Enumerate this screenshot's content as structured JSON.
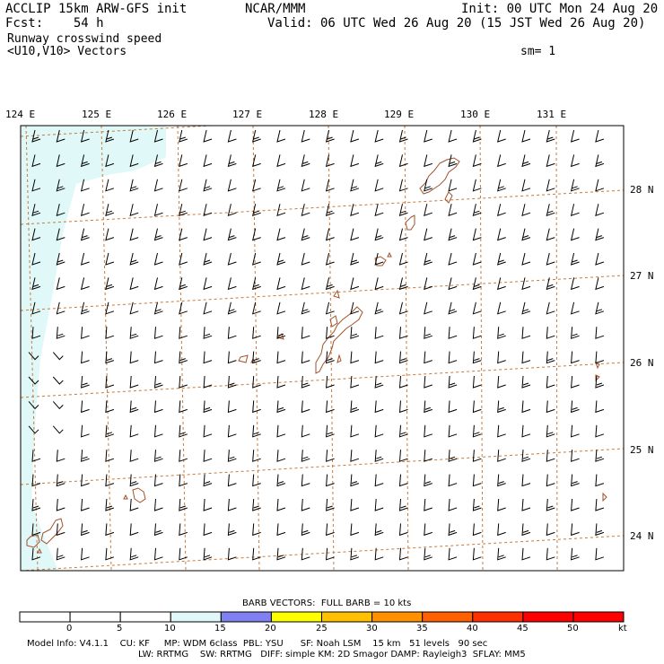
{
  "header": {
    "left_line1": "ACCLIP 15km ARW-GFS init",
    "center_line1": "NCAR/MMM",
    "right_line1": "Init: 00 UTC Mon 24 Aug 20",
    "left_line2": "Fcst:    54 h",
    "right_line2": "Valid: 06 UTC Wed 26 Aug 20 (15 JST Wed 26 Aug 20)",
    "field_name": "Runway crosswind speed",
    "field_vectors": "<U10,V10> Vectors",
    "smoothing": "sm= 1"
  },
  "map": {
    "lon_labels": [
      "124 E",
      "125 E",
      "126 E",
      "127 E",
      "128 E",
      "129 E",
      "130 E",
      "131 E"
    ],
    "lat_labels": [
      "28 N",
      "27 N",
      "26 N",
      "25 N",
      "24 N"
    ],
    "land_color": "#a0522d",
    "grid_color": "#c87a3c",
    "shade_color": "#e0f8f8"
  },
  "colorbar": {
    "title": "BARB VECTORS:  FULL BARB = 10 kts",
    "ticks": [
      "0",
      "5",
      "10",
      "15",
      "20",
      "25",
      "30",
      "35",
      "40",
      "45",
      "50"
    ],
    "unit": "kt",
    "colors": [
      "#ffffff",
      "#ffffff",
      "#ffffff",
      "#e0f8f8",
      "#8080f0",
      "#ffff00",
      "#ffc000",
      "#ff9000",
      "#ff6000",
      "#ff3000",
      "#ff0000",
      "#ff0000"
    ]
  },
  "footer": {
    "line1": "Model Info: V4.1.1    CU: KF     MP: WDM 6class  PBL: YSU      SF: Noah LSM    15 km   51 levels   90 sec",
    "line2": "LW: RRTMG    SW: RRTMG   DIFF: simple KM: 2D Smagor DAMP: Rayleigh3  SFLAY: MM5"
  }
}
